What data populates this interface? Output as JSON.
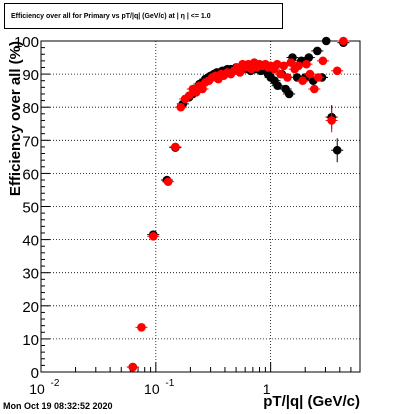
{
  "chart_data": {
    "type": "scatter",
    "title": "Efficiency over all for Primary vs pT/|q| (GeV/c) at | η | <= 1.0",
    "xlabel": "pT/|q| (GeV/c)",
    "ylabel": "Efficiency over all (%)",
    "x_scale": "log",
    "xlim": [
      0.01,
      6.0
    ],
    "ylim": [
      0,
      100
    ],
    "x_tick_labels": [
      {
        "value": 0.01,
        "base": "10",
        "exp": "-2"
      },
      {
        "value": 0.1,
        "base": "10",
        "exp": "-1"
      },
      {
        "value": 1,
        "base": "1",
        "exp": ""
      }
    ],
    "y_ticks": [
      0,
      10,
      20,
      30,
      40,
      50,
      60,
      70,
      80,
      90,
      100
    ],
    "grid": true,
    "series": [
      {
        "color": "#000000",
        "points": [
          {
            "x": 0.063,
            "y": 1.5
          },
          {
            "x": 0.095,
            "y": 41.5
          },
          {
            "x": 0.125,
            "y": 58
          },
          {
            "x": 0.148,
            "y": 67.8
          },
          {
            "x": 0.172,
            "y": 81
          },
          {
            "x": 0.195,
            "y": 83
          },
          {
            "x": 0.21,
            "y": 84
          },
          {
            "x": 0.225,
            "y": 85.5
          },
          {
            "x": 0.24,
            "y": 87
          },
          {
            "x": 0.255,
            "y": 87.5
          },
          {
            "x": 0.27,
            "y": 88.5
          },
          {
            "x": 0.285,
            "y": 89
          },
          {
            "x": 0.3,
            "y": 89.5
          },
          {
            "x": 0.32,
            "y": 90
          },
          {
            "x": 0.34,
            "y": 90.5
          },
          {
            "x": 0.36,
            "y": 90.5
          },
          {
            "x": 0.38,
            "y": 91
          },
          {
            "x": 0.4,
            "y": 91
          },
          {
            "x": 0.42,
            "y": 91.5
          },
          {
            "x": 0.45,
            "y": 91.5
          },
          {
            "x": 0.48,
            "y": 91
          },
          {
            "x": 0.5,
            "y": 92
          },
          {
            "x": 0.53,
            "y": 91.5
          },
          {
            "x": 0.56,
            "y": 92
          },
          {
            "x": 0.6,
            "y": 91.5
          },
          {
            "x": 0.63,
            "y": 92.5
          },
          {
            "x": 0.67,
            "y": 91
          },
          {
            "x": 0.7,
            "y": 92
          },
          {
            "x": 0.74,
            "y": 91.5
          },
          {
            "x": 0.78,
            "y": 92
          },
          {
            "x": 0.82,
            "y": 91
          },
          {
            "x": 0.86,
            "y": 92
          },
          {
            "x": 0.9,
            "y": 91.5
          },
          {
            "x": 0.95,
            "y": 90
          },
          {
            "x": 1.0,
            "y": 89
          },
          {
            "x": 1.08,
            "y": 88
          },
          {
            "x": 1.15,
            "y": 86.5
          },
          {
            "x": 1.25,
            "y": 90
          },
          {
            "x": 1.35,
            "y": 85.5
          },
          {
            "x": 1.45,
            "y": 84
          },
          {
            "x": 1.55,
            "y": 95
          },
          {
            "x": 1.7,
            "y": 89
          },
          {
            "x": 1.85,
            "y": 94
          },
          {
            "x": 2.0,
            "y": 89
          },
          {
            "x": 2.15,
            "y": 95
          },
          {
            "x": 2.35,
            "y": 88
          },
          {
            "x": 2.55,
            "y": 97
          },
          {
            "x": 2.8,
            "y": 89
          },
          {
            "x": 3.05,
            "y": 100
          },
          {
            "x": 3.4,
            "y": 77
          },
          {
            "x": 3.8,
            "y": 67
          },
          {
            "x": 4.3,
            "y": 99.5
          }
        ]
      },
      {
        "color": "#ff0000",
        "points": [
          {
            "x": 0.063,
            "y": 1.5
          },
          {
            "x": 0.075,
            "y": 13.5
          },
          {
            "x": 0.095,
            "y": 41
          },
          {
            "x": 0.128,
            "y": 57.5
          },
          {
            "x": 0.148,
            "y": 68
          },
          {
            "x": 0.165,
            "y": 80
          },
          {
            "x": 0.18,
            "y": 82.5
          },
          {
            "x": 0.195,
            "y": 83.5
          },
          {
            "x": 0.21,
            "y": 85.5
          },
          {
            "x": 0.225,
            "y": 84.5
          },
          {
            "x": 0.24,
            "y": 86.5
          },
          {
            "x": 0.255,
            "y": 85.5
          },
          {
            "x": 0.27,
            "y": 87.5
          },
          {
            "x": 0.29,
            "y": 88
          },
          {
            "x": 0.31,
            "y": 89
          },
          {
            "x": 0.33,
            "y": 89.5
          },
          {
            "x": 0.35,
            "y": 88.5
          },
          {
            "x": 0.37,
            "y": 90
          },
          {
            "x": 0.39,
            "y": 89.5
          },
          {
            "x": 0.42,
            "y": 90.5
          },
          {
            "x": 0.45,
            "y": 90
          },
          {
            "x": 0.48,
            "y": 91
          },
          {
            "x": 0.51,
            "y": 92
          },
          {
            "x": 0.54,
            "y": 90.5
          },
          {
            "x": 0.57,
            "y": 93
          },
          {
            "x": 0.6,
            "y": 92
          },
          {
            "x": 0.64,
            "y": 93
          },
          {
            "x": 0.68,
            "y": 91.5
          },
          {
            "x": 0.72,
            "y": 93.5
          },
          {
            "x": 0.76,
            "y": 92
          },
          {
            "x": 0.8,
            "y": 93
          },
          {
            "x": 0.85,
            "y": 92.5
          },
          {
            "x": 0.9,
            "y": 93
          },
          {
            "x": 0.95,
            "y": 92
          },
          {
            "x": 1.0,
            "y": 92.5
          },
          {
            "x": 1.07,
            "y": 91.5
          },
          {
            "x": 1.14,
            "y": 93
          },
          {
            "x": 1.22,
            "y": 90
          },
          {
            "x": 1.3,
            "y": 92.5
          },
          {
            "x": 1.4,
            "y": 89
          },
          {
            "x": 1.5,
            "y": 93.5
          },
          {
            "x": 1.62,
            "y": 91.5
          },
          {
            "x": 1.75,
            "y": 92.5
          },
          {
            "x": 1.9,
            "y": 88
          },
          {
            "x": 2.05,
            "y": 93
          },
          {
            "x": 2.2,
            "y": 90
          },
          {
            "x": 2.4,
            "y": 85.5
          },
          {
            "x": 2.6,
            "y": 89
          },
          {
            "x": 2.85,
            "y": 94
          },
          {
            "x": 3.4,
            "y": 76
          },
          {
            "x": 3.8,
            "y": 91
          },
          {
            "x": 4.3,
            "y": 100
          }
        ]
      }
    ]
  },
  "footer": {
    "timestamp": "Mon Oct 19 08:32:52 2020"
  }
}
